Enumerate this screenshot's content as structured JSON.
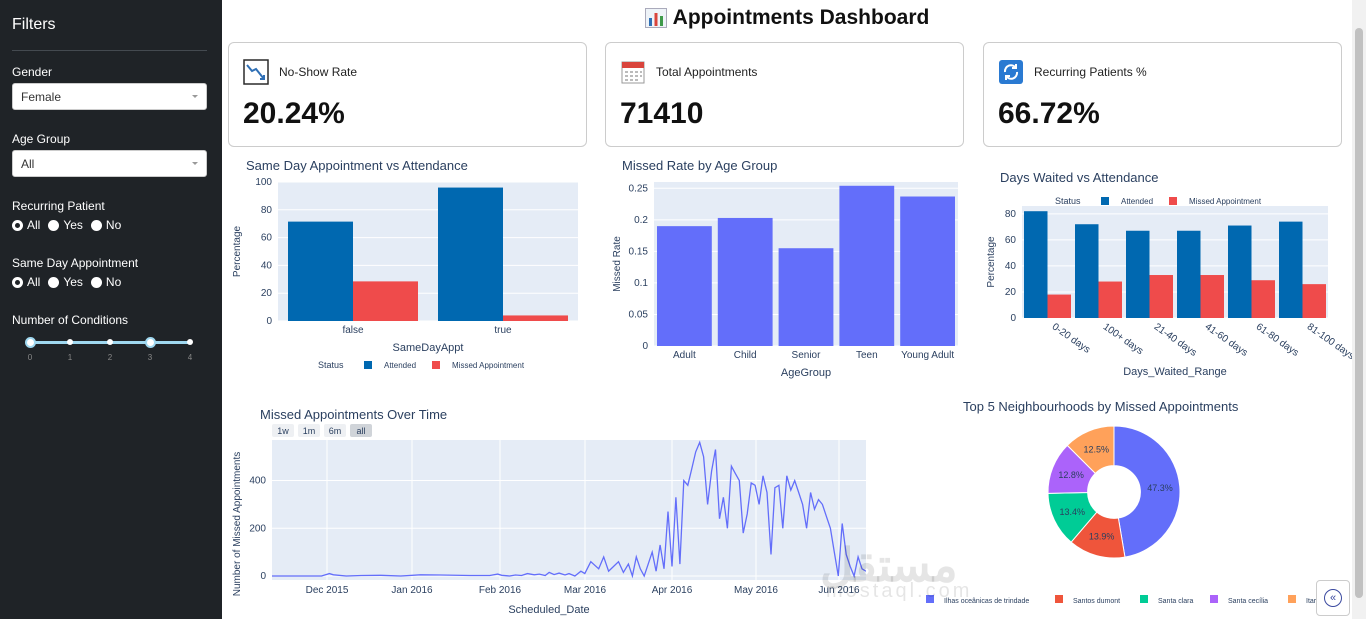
{
  "sidebar": {
    "title": "Filters",
    "gender": {
      "label": "Gender",
      "value": "Female"
    },
    "age_group": {
      "label": "Age Group",
      "value": "All"
    },
    "recurring": {
      "label": "Recurring Patient",
      "options": [
        "All",
        "Yes",
        "No"
      ],
      "selected": "All"
    },
    "same_day": {
      "label": "Same Day Appointment",
      "options": [
        "All",
        "Yes",
        "No"
      ],
      "selected": "All"
    },
    "conditions": {
      "label": "Number of Conditions",
      "ticks": [
        "0",
        "1",
        "2",
        "3",
        "4"
      ],
      "range": [
        0,
        3
      ]
    }
  },
  "header": {
    "title": "Appointments Dashboard",
    "icon": "bar-chart-icon"
  },
  "kpis": [
    {
      "title": "No-Show Rate",
      "value": "20.24%",
      "icon": "trend-down-icon"
    },
    {
      "title": "Total Appointments",
      "value": "71410",
      "icon": "calendar-icon"
    },
    {
      "title": "Recurring Patients %",
      "value": "66.72%",
      "icon": "refresh-icon"
    }
  ],
  "colors": {
    "attended": "#0068b0",
    "missed": "#ef4b4b",
    "purple": "#636efa",
    "plot_bg": "#e5ecf6"
  },
  "chart_data": [
    {
      "type": "bar",
      "title": "Same Day Appointment vs Attendance",
      "xlabel": "SameDayAppt",
      "ylabel": "Percentage",
      "categories": [
        "false",
        "true"
      ],
      "ylim": [
        0,
        100
      ],
      "yticks": [
        "0",
        "20",
        "40",
        "60",
        "80",
        "100"
      ],
      "legend_title": "Status",
      "series": [
        {
          "name": "Attended",
          "values": [
            71.5,
            96
          ]
        },
        {
          "name": "Missed Appointment",
          "values": [
            28.5,
            4
          ]
        }
      ]
    },
    {
      "type": "bar",
      "title": "Missed Rate by Age Group",
      "xlabel": "AgeGroup",
      "ylabel": "Missed Rate",
      "categories": [
        "Adult",
        "Child",
        "Senior",
        "Teen",
        "Young Adult"
      ],
      "values": [
        0.19,
        0.203,
        0.155,
        0.254,
        0.237
      ],
      "ylim": [
        0,
        0.26
      ],
      "yticks": [
        "0",
        "0.05",
        "0.1",
        "0.15",
        "0.2",
        "0.25"
      ]
    },
    {
      "type": "bar",
      "title": "Days Waited vs Attendance",
      "xlabel": "Days_Waited_Range",
      "ylabel": "Percentage",
      "categories": [
        "0-20 days",
        "100+ days",
        "21-40 days",
        "41-60 days",
        "61-80 days",
        "81-100 days"
      ],
      "ylim": [
        0,
        86
      ],
      "yticks": [
        "0",
        "20",
        "40",
        "60",
        "80"
      ],
      "legend_title": "Status",
      "series": [
        {
          "name": "Attended",
          "values": [
            82,
            72,
            67,
            67,
            71,
            74
          ]
        },
        {
          "name": "Missed Appointment",
          "values": [
            18,
            28,
            33,
            33,
            29,
            26
          ]
        }
      ]
    },
    {
      "type": "line",
      "title": "Missed Appointments Over Time",
      "xlabel": "Scheduled_Date",
      "ylabel": "Number of Missed Appointments",
      "range_buttons": [
        "1w",
        "1m",
        "6m",
        "all"
      ],
      "xticks": [
        "Dec 2015",
        "Jan 2016",
        "Feb 2016",
        "Mar 2016",
        "Apr 2016",
        "May 2016",
        "Jun 2016"
      ],
      "yticks": [
        "0",
        "200",
        "400"
      ],
      "ylim": [
        0,
        570
      ],
      "x": [
        0,
        10,
        30,
        50,
        58,
        62,
        75,
        90,
        110,
        130,
        150,
        170,
        200,
        220,
        228,
        232,
        240,
        246,
        252,
        258,
        265,
        270,
        276,
        280,
        285,
        290,
        296,
        300,
        306,
        312,
        316,
        322,
        330,
        335,
        340,
        345,
        350,
        355,
        360,
        364,
        368,
        372,
        376,
        380,
        384,
        388,
        392,
        396,
        400,
        404,
        408,
        412,
        416,
        420,
        424,
        428,
        432,
        436,
        440,
        444,
        448,
        452,
        456,
        460,
        464,
        468,
        472,
        476,
        480,
        484,
        488,
        492,
        496,
        500,
        504,
        508,
        512,
        516,
        520,
        524,
        528,
        532,
        536,
        540,
        544,
        548,
        552,
        556,
        560,
        564,
        568,
        572,
        576,
        580,
        584,
        588,
        592,
        596,
        600
      ],
      "y": [
        0,
        0,
        0,
        0,
        10,
        5,
        0,
        2,
        3,
        0,
        5,
        4,
        2,
        2,
        8,
        3,
        0,
        4,
        2,
        10,
        5,
        8,
        2,
        15,
        6,
        12,
        4,
        10,
        0,
        20,
        10,
        60,
        30,
        80,
        20,
        40,
        60,
        15,
        50,
        0,
        80,
        30,
        0,
        50,
        100,
        20,
        130,
        30,
        270,
        40,
        330,
        50,
        400,
        380,
        450,
        520,
        560,
        500,
        300,
        440,
        530,
        240,
        330,
        200,
        460,
        430,
        400,
        180,
        260,
        390,
        380,
        300,
        420,
        350,
        90,
        370,
        380,
        200,
        420,
        360,
        400,
        350,
        300,
        200,
        350,
        280,
        320,
        300,
        250,
        200,
        100,
        0,
        220,
        90,
        40,
        0,
        80,
        30,
        20
      ]
    },
    {
      "type": "pie",
      "title": "Top 5 Neighbourhoods by Missed Appointments",
      "labels": [
        "Ilhas oceânicas de trindade",
        "Santos dumont",
        "Santa clara",
        "Santa cecília",
        "Itarar"
      ],
      "values": [
        47.3,
        13.9,
        13.4,
        12.8,
        12.5
      ],
      "slice_labels": [
        "47.3%",
        "13.9%",
        "13.4%",
        "12.8%",
        "12.5%"
      ],
      "colors": [
        "#636efa",
        "#ef553b",
        "#00cc96",
        "#ab63fa",
        "#ffa15a"
      ],
      "hole": 0.4
    }
  ],
  "watermark": {
    "top": "مستقل",
    "bottom": "mostaql.com"
  }
}
